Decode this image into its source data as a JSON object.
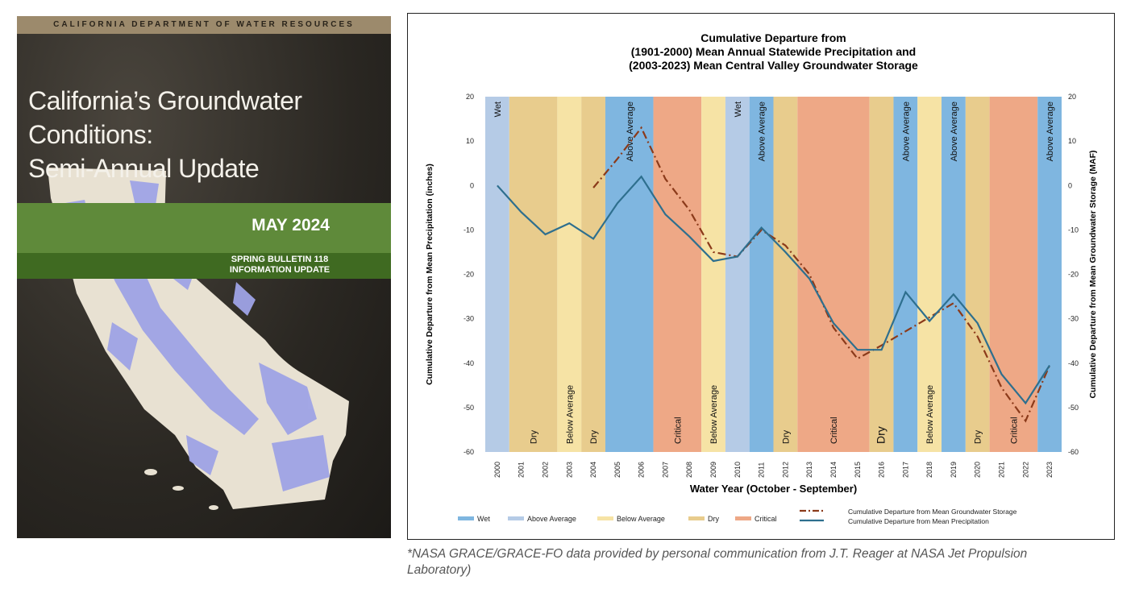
{
  "cover": {
    "agency": "CALIFORNIA DEPARTMENT OF WATER RESOURCES",
    "title_line1": "California’s Groundwater Conditions:",
    "title_line2": "Semi-Annual Update",
    "date": "MAY 2024",
    "subtitle_line1": "SPRING BULLETIN 118",
    "subtitle_line2": "INFORMATION UPDATE",
    "colors": {
      "green": "#5f8a3a",
      "dark_green": "#3f6a21",
      "map_fill": "#e8e1d2",
      "basin_fill": "#9fa3e6"
    }
  },
  "caption": {
    "line1": "*NASA GRACE/GRACE-FO data provided by personal communication from J.T. Reager at NASA Jet Propulsion",
    "line2": "Laboratory)"
  },
  "chart_data": {
    "type": "line",
    "title": [
      "Cumulative Departure from",
      "(1901-2000) Mean Annual Statewide Precipitation and",
      "(2003-2023) Mean Central Valley Groundwater Storage"
    ],
    "xlabel": "Water Year (October - September)",
    "ylabel_left": "Cumulative Departure from Mean Precipitation (inches)",
    "ylabel_right": "Cumulative Departure from Mean Groundwater Storage (MAF)",
    "ylim": [
      -60,
      20
    ],
    "yticks": [
      20,
      10,
      0,
      -10,
      -20,
      -30,
      -40,
      -50,
      -60
    ],
    "x": [
      2000,
      2001,
      2002,
      2003,
      2004,
      2005,
      2006,
      2007,
      2008,
      2009,
      2010,
      2011,
      2012,
      2013,
      2014,
      2015,
      2016,
      2017,
      2018,
      2019,
      2020,
      2021,
      2022,
      2023
    ],
    "year_types": [
      "Above Average",
      "Dry",
      "Dry",
      "Below Average",
      "Dry",
      "Wet",
      "Wet",
      "Critical",
      "Critical",
      "Below Average",
      "Above Average",
      "Wet",
      "Dry",
      "Critical",
      "Critical",
      "Critical",
      "Dry",
      "Wet",
      "Below Average",
      "Wet",
      "Dry",
      "Critical",
      "Critical",
      "Wet"
    ],
    "bands": [
      {
        "start": 2000,
        "end": 2000,
        "type": "Above Average",
        "label": "Wet"
      },
      {
        "start": 2001,
        "end": 2002,
        "type": "Dry",
        "label": "Dry"
      },
      {
        "start": 2003,
        "end": 2003,
        "type": "Below Average",
        "label": "Below Average"
      },
      {
        "start": 2004,
        "end": 2004,
        "type": "Dry",
        "label": "Dry"
      },
      {
        "start": 2005,
        "end": 2006,
        "type": "Wet",
        "label": "Above Average"
      },
      {
        "start": 2007,
        "end": 2008,
        "type": "Critical",
        "label": "Critical"
      },
      {
        "start": 2009,
        "end": 2009,
        "type": "Below Average",
        "label": "Below Average"
      },
      {
        "start": 2010,
        "end": 2010,
        "type": "Above Average",
        "label": "Wet"
      },
      {
        "start": 2011,
        "end": 2011,
        "type": "Wet",
        "label": "Above Average"
      },
      {
        "start": 2012,
        "end": 2012,
        "type": "Dry",
        "label": "Dry"
      },
      {
        "start": 2013,
        "end": 2015,
        "type": "Critical",
        "label": "Critical"
      },
      {
        "start": 2016,
        "end": 2016,
        "type": "Dry",
        "label": "Dry"
      },
      {
        "start": 2017,
        "end": 2017,
        "type": "Wet",
        "label": "Above Average"
      },
      {
        "start": 2018,
        "end": 2018,
        "type": "Below Average",
        "label": "Below Average"
      },
      {
        "start": 2019,
        "end": 2019,
        "type": "Wet",
        "label": "Above Average"
      },
      {
        "start": 2020,
        "end": 2020,
        "type": "Dry",
        "label": "Dry"
      },
      {
        "start": 2021,
        "end": 2022,
        "type": "Critical",
        "label": "Critical"
      },
      {
        "start": 2023,
        "end": 2023,
        "type": "Wet",
        "label": "Above Average"
      }
    ],
    "band_colors": {
      "Wet": "#7fb6e0",
      "Above Average": "#b5cbe6",
      "Below Average": "#f6e3a5",
      "Dry": "#e8cc8d",
      "Critical": "#eea886"
    },
    "series": [
      {
        "name": "Cumulative Departure from Mean Precipitation",
        "color": "#2e6f8e",
        "x": [
          2000,
          2001,
          2002,
          2003,
          2004,
          2005,
          2006,
          2007,
          2008,
          2009,
          2010,
          2011,
          2012,
          2013,
          2014,
          2015,
          2016,
          2017,
          2018,
          2019,
          2020,
          2021,
          2022,
          2023
        ],
        "values": [
          0,
          -6,
          -11,
          -8.5,
          -12,
          -4,
          2,
          -6.5,
          -11.5,
          -17,
          -16,
          -9.5,
          -15,
          -21,
          -31,
          -37,
          -37,
          -24,
          -30.5,
          -24.5,
          -31,
          -42.5,
          -49,
          -40.5
        ]
      },
      {
        "name": "Cumulative Departure from Mean Groundwater Storage",
        "color": "#8b3a1a",
        "x": [
          2004,
          2005,
          2006,
          2007,
          2008,
          2009,
          2010,
          2011,
          2012,
          2013,
          2014,
          2015,
          2016,
          2019,
          2020,
          2021,
          2022,
          2023
        ],
        "values": [
          -0.5,
          6,
          13,
          1.5,
          -5.5,
          -15,
          -16,
          -10,
          -13.5,
          -20,
          -32,
          -39,
          -36,
          -26.5,
          -34,
          -45.5,
          -53,
          -40.5
        ]
      }
    ],
    "legend": [
      "Wet",
      "Above Average",
      "Below Average",
      "Dry",
      "Critical",
      "Cumulative Departure from Mean Groundwater Storage",
      "Cumulative Departure from Mean Precipitation"
    ],
    "legend_position": "bottom"
  }
}
